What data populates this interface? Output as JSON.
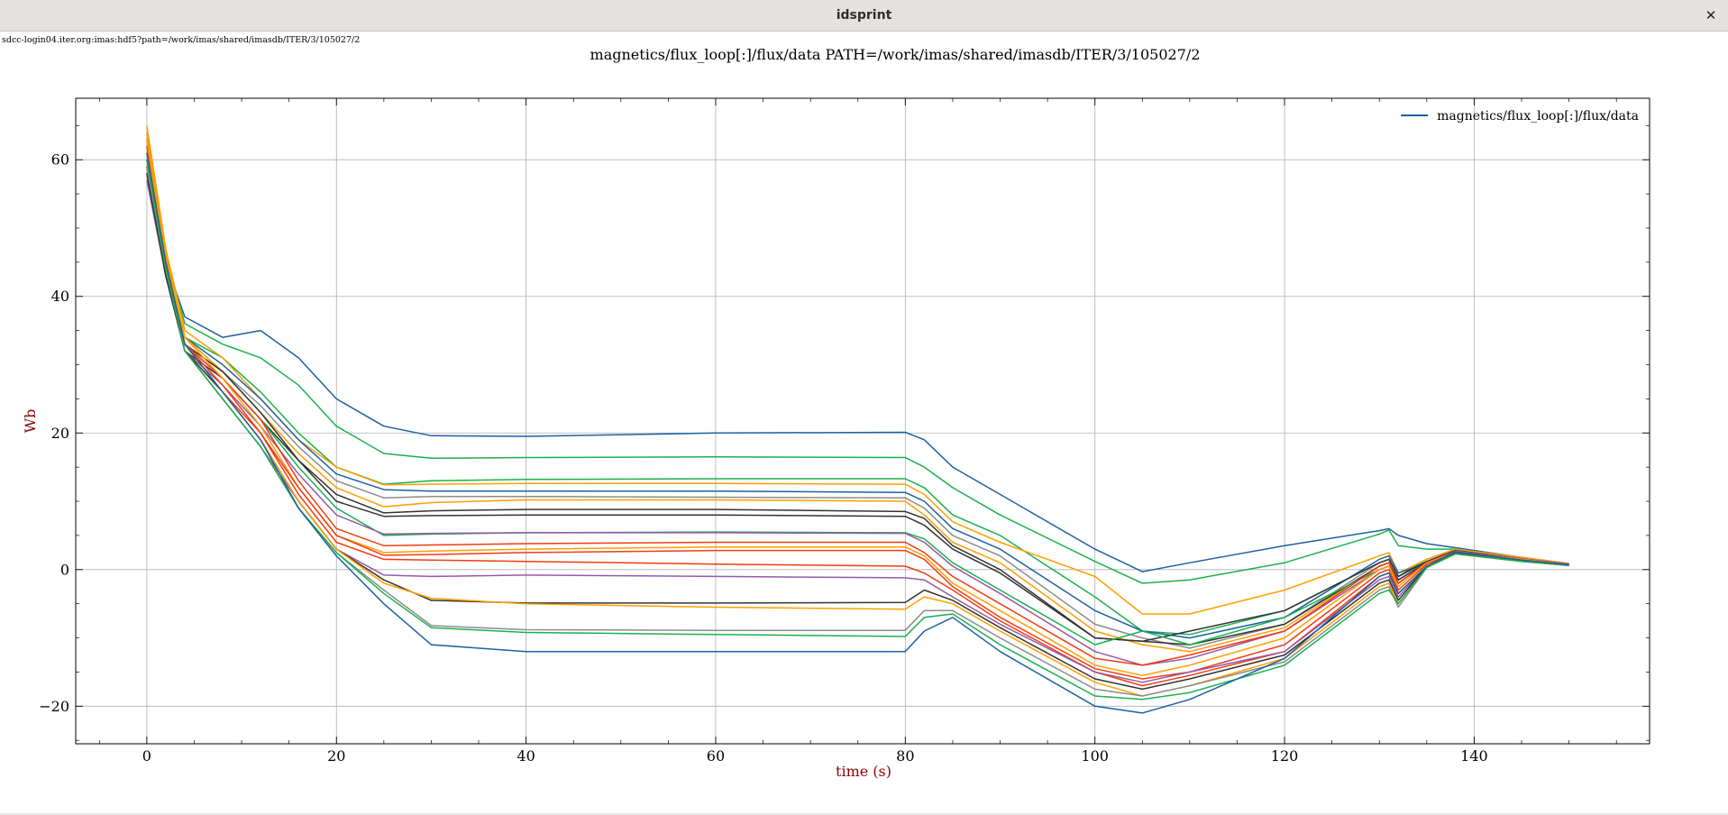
{
  "window": {
    "title": "idsprint",
    "close_glyph": "✕"
  },
  "source_url": "sdcc-login04.iter.org:imas:hdf5?path=/work/imas/shared/imasdb/ITER/3/105027/2",
  "chart_data": {
    "type": "line",
    "title": "magnetics/flux_loop[:]/flux/data PATH=/work/imas/shared/imasdb/ITER/3/105027/2",
    "xlabel": "time (s)",
    "ylabel": "Wb",
    "xlim": [
      -7.5,
      158.5
    ],
    "ylim": [
      -25.5,
      69
    ],
    "xticks": [
      0,
      20,
      40,
      60,
      80,
      100,
      120,
      140
    ],
    "yticks": [
      -20,
      0,
      20,
      40,
      60
    ],
    "grid": true,
    "legend": {
      "placement": "top-right",
      "entries": [
        "magnetics/flux_loop[:]/flux/data"
      ]
    },
    "label_color": "#8b0000",
    "x": [
      0,
      2,
      4,
      8,
      12,
      16,
      20,
      25,
      30,
      40,
      60,
      80,
      82,
      85,
      90,
      100,
      105,
      110,
      120,
      130,
      131,
      132,
      135,
      138,
      145,
      150
    ],
    "series": [
      {
        "color": "#1f60a0",
        "values": [
          60,
          45,
          37,
          34,
          35,
          31,
          25,
          21,
          19.6,
          19.5,
          20,
          20.1,
          19,
          15,
          11,
          3,
          -0.3,
          1,
          3.5,
          5.7,
          6,
          5,
          3.8,
          3.2,
          1.8,
          0.9
        ]
      },
      {
        "color": "#19b24b",
        "values": [
          62,
          46,
          36,
          33,
          31,
          27,
          21,
          17,
          16.3,
          16.4,
          16.5,
          16.4,
          15,
          12,
          8,
          1.2,
          -2,
          -1.5,
          1,
          5.2,
          5.8,
          3.5,
          3,
          3,
          1.6,
          0.8
        ]
      },
      {
        "color": "#19b24b",
        "values": [
          61,
          45,
          34,
          31,
          26,
          20,
          15,
          12.5,
          13,
          13.2,
          13.3,
          13.3,
          12,
          8,
          5,
          -4,
          -9,
          -9.5,
          -6,
          1,
          1.5,
          -1,
          1.5,
          3,
          1.8,
          0.8
        ]
      },
      {
        "color": "#ff9f00",
        "values": [
          65,
          47,
          35,
          31,
          25,
          19,
          15,
          12.4,
          12.5,
          12.6,
          12.6,
          12.5,
          11,
          7,
          4,
          -1,
          -6.5,
          -6.5,
          -3,
          2,
          2.5,
          -0.5,
          1.5,
          3,
          1.8,
          0.9
        ]
      },
      {
        "color": "#1f60a0",
        "values": [
          60,
          45,
          34,
          30,
          25,
          19,
          14,
          11.7,
          11.5,
          11.5,
          11.5,
          11.3,
          10,
          6,
          3,
          -6,
          -9,
          -10,
          -7,
          1.5,
          2,
          -0.5,
          1,
          2.6,
          1.5,
          0.7
        ]
      },
      {
        "color": "#8c8c8c",
        "values": [
          59,
          44,
          33,
          29,
          24,
          18,
          13,
          10.5,
          10.7,
          10.7,
          10.6,
          10.5,
          9,
          5,
          2,
          -8,
          -10,
          -11.5,
          -8,
          1,
          1.5,
          -1,
          1,
          2.5,
          1.5,
          0.7
        ]
      },
      {
        "color": "#ff9f00",
        "values": [
          64,
          46,
          34,
          29,
          23,
          17,
          12,
          9.2,
          9.8,
          10.2,
          10.2,
          10,
          8,
          4,
          1,
          -9,
          -11,
          -12,
          -8.5,
          0.5,
          1,
          -1.5,
          1,
          2.5,
          1.5,
          0.7
        ]
      },
      {
        "color": "#333333",
        "values": [
          59,
          44,
          33,
          29,
          23,
          16,
          11,
          8.3,
          8.6,
          8.8,
          8.8,
          8.5,
          7.5,
          3.5,
          0,
          -10,
          -10.5,
          -11,
          -8,
          0.5,
          1,
          -1.5,
          1,
          2.6,
          1.5,
          0.7
        ]
      },
      {
        "color": "#333333",
        "values": [
          58,
          43,
          32,
          28,
          22,
          16,
          10,
          7.8,
          7.9,
          8,
          8,
          7.8,
          6.5,
          3,
          -0.5,
          -10,
          -10.5,
          -9,
          -6,
          1,
          1.5,
          -1,
          1.2,
          2.8,
          1.6,
          0.8
        ]
      },
      {
        "color": "#19b24b",
        "values": [
          60,
          44,
          33,
          28,
          22,
          15,
          9,
          5,
          5.2,
          5.4,
          5.5,
          5.4,
          4.5,
          1,
          -3,
          -11,
          -9,
          -11,
          -7,
          0,
          0.5,
          -2,
          1,
          2.5,
          1.5,
          0.7
        ]
      },
      {
        "color": "#955aa8",
        "values": [
          58,
          43,
          32,
          27,
          21,
          14,
          8,
          5.2,
          5.3,
          5.4,
          5.4,
          5.3,
          4,
          0.5,
          -3.5,
          -12,
          -14,
          -13,
          -9,
          0,
          0.5,
          -2,
          1,
          2.7,
          1.6,
          0.8
        ]
      },
      {
        "color": "#f03c14",
        "values": [
          59,
          44,
          33,
          28,
          22,
          13,
          6,
          3.5,
          3.6,
          3.8,
          4,
          4,
          2.5,
          -1,
          -5,
          -13,
          -14,
          -12.5,
          -9,
          0.5,
          1,
          -2,
          1,
          2.6,
          1.5,
          0.7
        ]
      },
      {
        "color": "#ff9f00",
        "values": [
          64,
          46,
          34,
          28,
          21,
          12,
          5,
          2.5,
          2.7,
          3,
          3.3,
          3.3,
          2,
          -2,
          -6,
          -14,
          -15.5,
          -14,
          -10,
          0,
          0.5,
          -2.5,
          1,
          2.5,
          1.5,
          0.7
        ]
      },
      {
        "color": "#f03c14",
        "values": [
          62,
          45,
          33,
          27,
          20,
          12,
          5,
          2.1,
          2.2,
          2.5,
          2.8,
          2.8,
          1.5,
          -2.5,
          -7,
          -14.5,
          -16,
          -15,
          -11,
          -0.5,
          0,
          -3,
          0.8,
          2.5,
          1.4,
          0.7
        ]
      },
      {
        "color": "#f03c14",
        "values": [
          63,
          45,
          33,
          26,
          20,
          11,
          4,
          1.5,
          1.4,
          1.2,
          0.8,
          0.5,
          -0.5,
          -3,
          -7.5,
          -15,
          -17,
          -15.5,
          -12,
          -1,
          -0.5,
          -3.5,
          0.5,
          2.4,
          1.3,
          0.6
        ]
      },
      {
        "color": "#955aa8",
        "values": [
          57,
          43,
          32,
          25,
          18,
          10,
          3,
          -0.8,
          -1,
          -0.8,
          -1,
          -1.2,
          -1.5,
          -4,
          -8,
          -15,
          -16.5,
          -15,
          -12,
          -1.5,
          -1,
          -4,
          0.5,
          2.4,
          1.3,
          0.6
        ]
      },
      {
        "color": "#333333",
        "values": [
          58,
          43,
          32,
          26,
          19,
          10,
          3,
          -1.5,
          -4.5,
          -4.9,
          -4.9,
          -4.8,
          -3,
          -4.5,
          -8.5,
          -16,
          -17.5,
          -16,
          -12.5,
          -2,
          -1.5,
          -4.5,
          0.5,
          2.4,
          1.3,
          0.6
        ]
      },
      {
        "color": "#ff9f00",
        "values": [
          63,
          45,
          33,
          26,
          19,
          10,
          3,
          -2,
          -4.2,
          -5,
          -5.5,
          -5.8,
          -4,
          -5,
          -9,
          -16.5,
          -18.5,
          -17,
          -13,
          -2.5,
          -2,
          -5,
          0.3,
          2.3,
          1.2,
          0.6
        ]
      },
      {
        "color": "#8c8c8c",
        "values": [
          59,
          44,
          32,
          25,
          18,
          9,
          2.5,
          -3,
          -8.2,
          -8.8,
          -8.9,
          -8.9,
          -6,
          -6,
          -10,
          -17.5,
          -18.5,
          -17,
          -13.5,
          -3,
          -2.5,
          -5.5,
          0.3,
          2.3,
          1.2,
          0.6
        ]
      },
      {
        "color": "#19b24b",
        "values": [
          60,
          44,
          32,
          25,
          18,
          9,
          2.5,
          -3.5,
          -8.5,
          -9.2,
          -9.5,
          -9.8,
          -7,
          -6.5,
          -11,
          -18.5,
          -19,
          -18,
          -14,
          -3.5,
          -3,
          -5,
          0.3,
          2.3,
          1.2,
          0.6
        ]
      },
      {
        "color": "#1f60a0",
        "values": [
          61,
          45,
          33,
          26,
          19,
          9,
          2,
          -5,
          -11,
          -12,
          -12,
          -12,
          -9,
          -7,
          -12,
          -20,
          -21,
          -19,
          -13,
          -1,
          -0.5,
          -3.5,
          0.5,
          2.6,
          1.4,
          0.7
        ]
      }
    ]
  }
}
